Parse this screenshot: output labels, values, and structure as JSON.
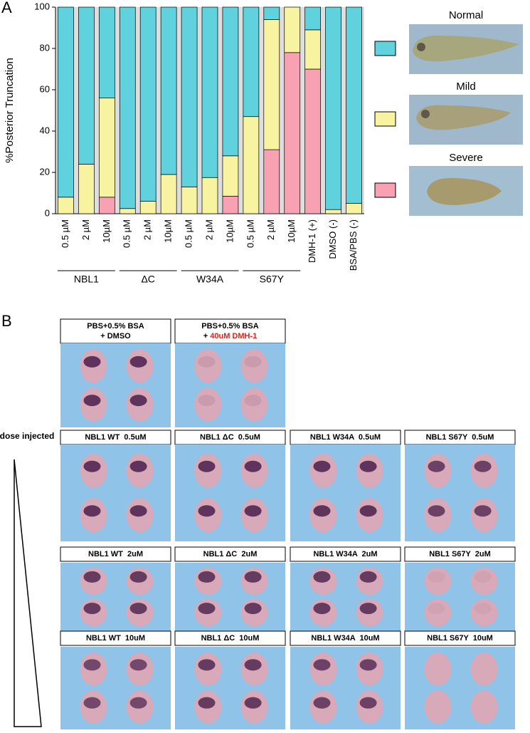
{
  "chart_data": {
    "type": "stacked_bar",
    "panel_label": "A",
    "y_label": "%Posterior Truncation",
    "categories": [
      "0.5 µM",
      "2 µM",
      "10µM",
      "0.5 µM",
      "2 µM",
      "10µM",
      "0.5 µM",
      "2 µM",
      "10µM",
      "0.5 µM",
      "2 µM",
      "10µM",
      "DMH-1 (+)",
      "DMSO (-)",
      "BSA/PBS (-)"
    ],
    "groups": [
      "NBL1",
      "ΔC",
      "W34A",
      "S67Y"
    ],
    "series": [
      {
        "name": "Severe",
        "color": "#f7a1b3",
        "values": [
          0,
          0,
          8,
          0,
          0,
          0,
          0,
          0,
          8.5,
          0,
          31,
          78,
          70,
          0,
          0
        ]
      },
      {
        "name": "Mild",
        "color": "#f7f3a1",
        "values": [
          8,
          24,
          48,
          2.5,
          6,
          19,
          13,
          17.5,
          19.5,
          47,
          63,
          22,
          19,
          2,
          5
        ]
      },
      {
        "name": "Normal",
        "color": "#5fd2de",
        "values": [
          92,
          76,
          44,
          97.5,
          94,
          81,
          87,
          82.5,
          72,
          53,
          6,
          0,
          11,
          98,
          95
        ]
      }
    ],
    "ylim": [
      0,
      100
    ],
    "yticks": [
      0,
      20,
      40,
      60,
      80,
      100
    ]
  },
  "panel_b": {
    "label": "B",
    "dose_label": "dose injected",
    "controls": [
      {
        "line1": "PBS+0.5% BSA",
        "line2": "+ DMSO"
      },
      {
        "line1": "PBS+0.5% BSA",
        "line2": "+ ",
        "line2_highlight": "40uM DMH-1"
      }
    ],
    "rows": [
      [
        "NBL1 WT  0.5uM",
        "NBL1 ΔC  0.5uM",
        "NBL1 W34A  0.5uM",
        "NBL1 S67Y  0.5uM"
      ],
      [
        "NBL1 WT  2uM",
        "NBL1 ΔC  2uM",
        "NBL1 W34A  2uM",
        "NBL1 S67Y  2uM"
      ],
      [
        "NBL1 WT  10uM",
        "NBL1 ΔC  10uM",
        "NBL1 W34A  10uM",
        "NBL1 S67Y  10uM"
      ]
    ]
  }
}
